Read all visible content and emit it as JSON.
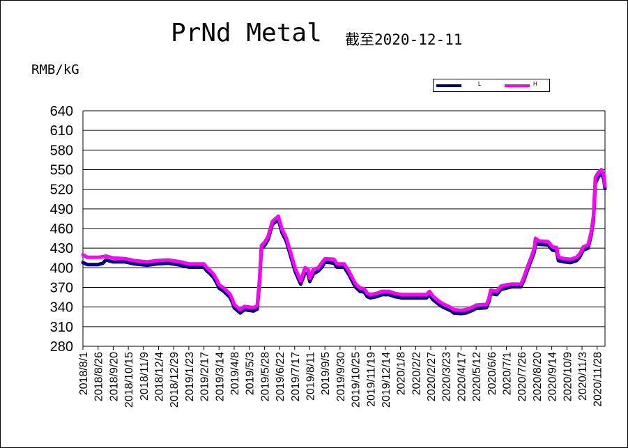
{
  "title": "PrNd Metal",
  "subtitle": "截至2020-12-11",
  "unit": "RMB/kG",
  "colors": {
    "L": "#000080",
    "H": "#ff00ff",
    "grid": "#000000"
  },
  "legend": {
    "L": "L",
    "H": "H"
  },
  "chart_data": {
    "type": "line",
    "title": "PrNd Metal",
    "subtitle": "截至2020-12-11",
    "ylabel": "RMB/kG",
    "xlabel": "",
    "ylim": [
      280,
      640
    ],
    "yticks": [
      280,
      310,
      340,
      370,
      400,
      430,
      460,
      490,
      520,
      550,
      580,
      610,
      640
    ],
    "grid": true,
    "legend_position": "top-right",
    "xticks": [
      "2018/8/1",
      "2018/8/26",
      "2018/9/20",
      "2018/10/15",
      "2018/11/9",
      "2018/12/4",
      "2018/12/29",
      "2019/1/23",
      "2019/2/17",
      "2019/3/14",
      "2019/4/8",
      "2019/5/3",
      "2019/5/28",
      "2019/6/22",
      "2019/7/17",
      "2019/8/11",
      "2019/9/5",
      "2019/9/30",
      "2019/10/25",
      "2019/11/19",
      "2019/12/14",
      "2020/1/8",
      "2020/2/2",
      "2020/2/27",
      "2020/3/23",
      "2020/4/17",
      "2020/5/12",
      "2020/6/6",
      "2020/7/1",
      "2020/7/26",
      "2020/8/20",
      "2020/9/14",
      "2020/10/9",
      "2020/11/3",
      "2020/11/28"
    ],
    "x_end": "2020-12-11",
    "series": [
      {
        "name": "L",
        "points": [
          [
            "2018-08-01",
            409
          ],
          [
            "2018-08-08",
            406
          ],
          [
            "2018-08-26",
            406
          ],
          [
            "2018-09-03",
            408
          ],
          [
            "2018-09-08",
            413
          ],
          [
            "2018-09-20",
            410
          ],
          [
            "2018-10-10",
            410
          ],
          [
            "2018-10-25",
            407
          ],
          [
            "2018-11-15",
            405
          ],
          [
            "2018-12-01",
            407
          ],
          [
            "2018-12-20",
            408
          ],
          [
            "2019-01-10",
            405
          ],
          [
            "2019-01-23",
            402
          ],
          [
            "2019-02-17",
            402
          ],
          [
            "2019-02-21",
            397
          ],
          [
            "2019-02-27",
            392
          ],
          [
            "2019-03-05",
            386
          ],
          [
            "2019-03-10",
            378
          ],
          [
            "2019-03-14",
            370
          ],
          [
            "2019-03-22",
            365
          ],
          [
            "2019-04-01",
            356
          ],
          [
            "2019-04-05",
            348
          ],
          [
            "2019-04-08",
            340
          ],
          [
            "2019-04-13",
            336
          ],
          [
            "2019-04-18",
            332
          ],
          [
            "2019-04-25",
            337
          ],
          [
            "2019-05-10",
            335
          ],
          [
            "2019-05-16",
            338
          ],
          [
            "2019-05-20",
            380
          ],
          [
            "2019-05-23",
            430
          ],
          [
            "2019-05-29",
            436
          ],
          [
            "2019-06-03",
            444
          ],
          [
            "2019-06-10",
            467
          ],
          [
            "2019-06-20",
            475
          ],
          [
            "2019-06-26",
            455
          ],
          [
            "2019-07-03",
            442
          ],
          [
            "2019-07-10",
            420
          ],
          [
            "2019-07-18",
            395
          ],
          [
            "2019-07-27",
            376
          ],
          [
            "2019-08-03",
            393
          ],
          [
            "2019-08-08",
            392
          ],
          [
            "2019-08-11",
            380
          ],
          [
            "2019-08-17",
            392
          ],
          [
            "2019-08-25",
            396
          ],
          [
            "2019-08-31",
            402
          ],
          [
            "2019-09-05",
            410
          ],
          [
            "2019-09-20",
            408
          ],
          [
            "2019-09-25",
            402
          ],
          [
            "2019-10-07",
            402
          ],
          [
            "2019-10-15",
            390
          ],
          [
            "2019-10-25",
            372
          ],
          [
            "2019-11-02",
            365
          ],
          [
            "2019-11-09",
            364
          ],
          [
            "2019-11-14",
            357
          ],
          [
            "2019-11-19",
            355
          ],
          [
            "2019-11-30",
            357
          ],
          [
            "2019-12-08",
            360
          ],
          [
            "2019-12-20",
            360
          ],
          [
            "2019-12-29",
            357
          ],
          [
            "2020-01-10",
            355
          ],
          [
            "2020-02-20",
            355
          ],
          [
            "2020-02-25",
            360
          ],
          [
            "2020-03-01",
            353
          ],
          [
            "2020-03-10",
            346
          ],
          [
            "2020-03-18",
            341
          ],
          [
            "2020-03-25",
            338
          ],
          [
            "2020-04-01",
            335
          ],
          [
            "2020-04-05",
            332
          ],
          [
            "2020-04-17",
            331
          ],
          [
            "2020-04-25",
            332
          ],
          [
            "2020-05-06",
            336
          ],
          [
            "2020-05-12",
            339
          ],
          [
            "2020-05-29",
            340
          ],
          [
            "2020-06-02",
            349
          ],
          [
            "2020-06-05",
            362
          ],
          [
            "2020-06-15",
            360
          ],
          [
            "2020-06-22",
            368
          ],
          [
            "2020-07-01",
            370
          ],
          [
            "2020-07-10",
            372
          ],
          [
            "2020-07-25",
            372
          ],
          [
            "2020-07-30",
            382
          ],
          [
            "2020-08-05",
            398
          ],
          [
            "2020-08-12",
            415
          ],
          [
            "2020-08-16",
            425
          ],
          [
            "2020-08-18",
            438
          ],
          [
            "2020-08-24",
            437
          ],
          [
            "2020-09-08",
            436
          ],
          [
            "2020-09-15",
            428
          ],
          [
            "2020-09-22",
            427
          ],
          [
            "2020-09-25",
            412
          ],
          [
            "2020-10-05",
            410
          ],
          [
            "2020-10-15",
            409
          ],
          [
            "2020-10-25",
            412
          ],
          [
            "2020-10-30",
            417
          ],
          [
            "2020-11-05",
            428
          ],
          [
            "2020-11-13",
            431
          ],
          [
            "2020-11-18",
            450
          ],
          [
            "2020-11-22",
            475
          ],
          [
            "2020-11-25",
            530
          ],
          [
            "2020-11-30",
            540
          ],
          [
            "2020-12-05",
            547
          ],
          [
            "2020-12-09",
            536
          ],
          [
            "2020-12-11",
            522
          ]
        ]
      },
      {
        "name": "H",
        "points": [
          [
            "2018-08-01",
            420
          ],
          [
            "2018-08-08",
            416
          ],
          [
            "2018-08-26",
            416
          ],
          [
            "2018-09-03",
            417
          ],
          [
            "2018-09-08",
            418
          ],
          [
            "2018-09-20",
            415
          ],
          [
            "2018-10-10",
            414
          ],
          [
            "2018-10-25",
            411
          ],
          [
            "2018-11-15",
            409
          ],
          [
            "2018-12-01",
            411
          ],
          [
            "2018-12-20",
            412
          ],
          [
            "2019-01-10",
            409
          ],
          [
            "2019-01-23",
            406
          ],
          [
            "2019-02-17",
            406
          ],
          [
            "2019-02-21",
            401
          ],
          [
            "2019-02-27",
            396
          ],
          [
            "2019-03-05",
            390
          ],
          [
            "2019-03-10",
            382
          ],
          [
            "2019-03-14",
            374
          ],
          [
            "2019-03-22",
            369
          ],
          [
            "2019-04-01",
            360
          ],
          [
            "2019-04-05",
            352
          ],
          [
            "2019-04-08",
            344
          ],
          [
            "2019-04-13",
            340
          ],
          [
            "2019-04-18",
            336
          ],
          [
            "2019-04-25",
            341
          ],
          [
            "2019-05-10",
            339
          ],
          [
            "2019-05-16",
            342
          ],
          [
            "2019-05-20",
            384
          ],
          [
            "2019-05-23",
            434
          ],
          [
            "2019-05-29",
            440
          ],
          [
            "2019-06-03",
            448
          ],
          [
            "2019-06-10",
            471
          ],
          [
            "2019-06-20",
            479
          ],
          [
            "2019-06-26",
            459
          ],
          [
            "2019-07-03",
            446
          ],
          [
            "2019-07-10",
            424
          ],
          [
            "2019-07-18",
            399
          ],
          [
            "2019-07-27",
            380
          ],
          [
            "2019-08-03",
            400
          ],
          [
            "2019-08-08",
            398
          ],
          [
            "2019-08-11",
            384
          ],
          [
            "2019-08-17",
            398
          ],
          [
            "2019-08-25",
            400
          ],
          [
            "2019-08-31",
            408
          ],
          [
            "2019-09-05",
            414
          ],
          [
            "2019-09-20",
            413
          ],
          [
            "2019-09-25",
            406
          ],
          [
            "2019-10-07",
            406
          ],
          [
            "2019-10-15",
            394
          ],
          [
            "2019-10-25",
            376
          ],
          [
            "2019-11-02",
            369
          ],
          [
            "2019-11-09",
            368
          ],
          [
            "2019-11-14",
            361
          ],
          [
            "2019-11-19",
            359
          ],
          [
            "2019-11-30",
            361
          ],
          [
            "2019-12-08",
            364
          ],
          [
            "2019-12-20",
            364
          ],
          [
            "2019-12-29",
            361
          ],
          [
            "2020-01-10",
            359
          ],
          [
            "2020-02-20",
            359
          ],
          [
            "2020-02-25",
            364
          ],
          [
            "2020-03-01",
            357
          ],
          [
            "2020-03-10",
            350
          ],
          [
            "2020-03-18",
            345
          ],
          [
            "2020-03-25",
            342
          ],
          [
            "2020-04-01",
            339
          ],
          [
            "2020-04-05",
            336
          ],
          [
            "2020-04-17",
            335
          ],
          [
            "2020-04-25",
            336
          ],
          [
            "2020-05-06",
            340
          ],
          [
            "2020-05-12",
            343
          ],
          [
            "2020-05-29",
            344
          ],
          [
            "2020-06-02",
            353
          ],
          [
            "2020-06-05",
            366
          ],
          [
            "2020-06-15",
            364
          ],
          [
            "2020-06-22",
            372
          ],
          [
            "2020-07-01",
            374
          ],
          [
            "2020-07-10",
            375
          ],
          [
            "2020-07-25",
            375
          ],
          [
            "2020-07-30",
            386
          ],
          [
            "2020-08-05",
            402
          ],
          [
            "2020-08-12",
            419
          ],
          [
            "2020-08-16",
            430
          ],
          [
            "2020-08-18",
            445
          ],
          [
            "2020-08-24",
            441
          ],
          [
            "2020-09-08",
            440
          ],
          [
            "2020-09-15",
            432
          ],
          [
            "2020-09-22",
            431
          ],
          [
            "2020-09-25",
            416
          ],
          [
            "2020-10-05",
            414
          ],
          [
            "2020-10-15",
            413
          ],
          [
            "2020-10-25",
            416
          ],
          [
            "2020-10-30",
            421
          ],
          [
            "2020-11-05",
            432
          ],
          [
            "2020-11-13",
            435
          ],
          [
            "2020-11-18",
            454
          ],
          [
            "2020-11-22",
            480
          ],
          [
            "2020-11-25",
            538
          ],
          [
            "2020-11-30",
            546
          ],
          [
            "2020-12-05",
            550
          ],
          [
            "2020-12-09",
            542
          ],
          [
            "2020-12-11",
            525
          ]
        ]
      }
    ]
  }
}
